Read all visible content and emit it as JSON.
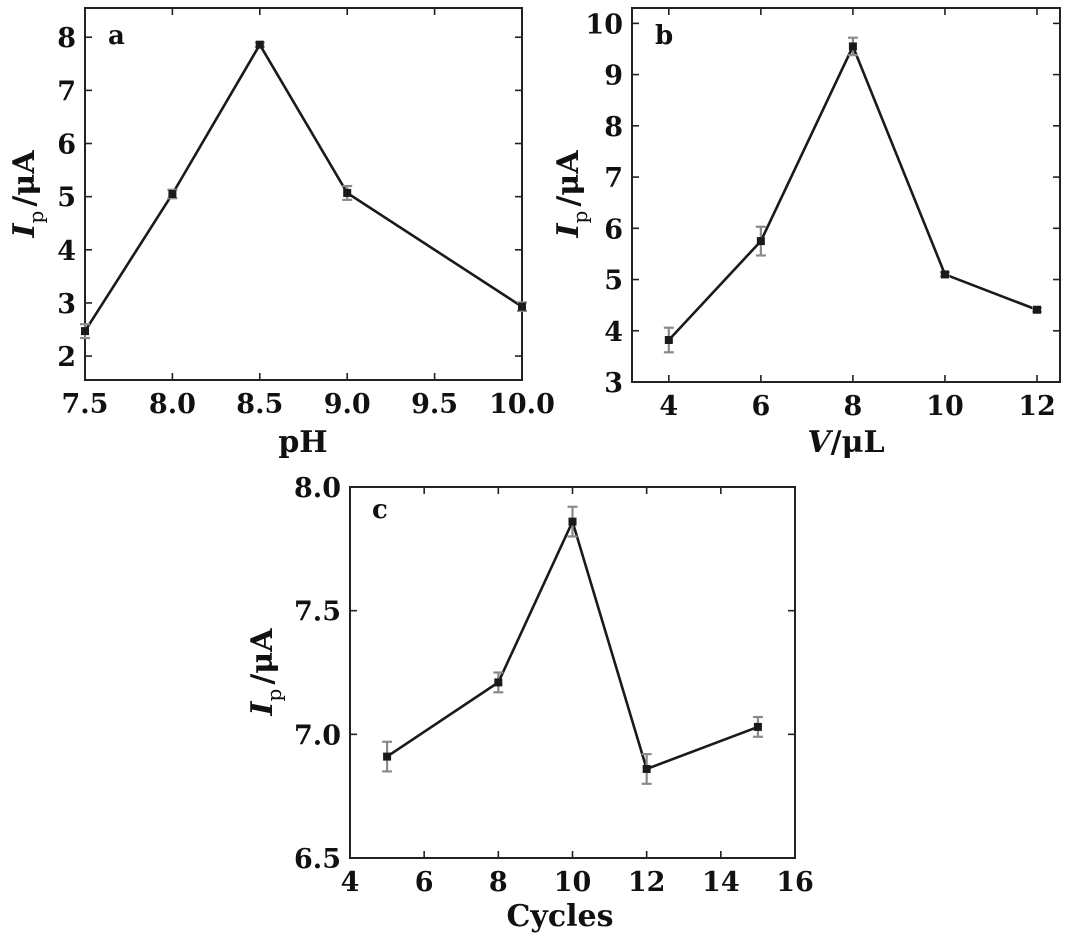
{
  "chart_data": [
    {
      "type": "line",
      "panel": "a",
      "xlabel": "pH",
      "ylabel": {
        "symbol": "I",
        "subscript": "p",
        "unit": "/μA"
      },
      "xlim": [
        7.5,
        10.0
      ],
      "ylim": [
        1.55,
        8.55
      ],
      "xticks": [
        "7.5",
        "8.0",
        "8.5",
        "9.0",
        "9.5",
        "10.0"
      ],
      "yticks": [
        "2",
        "3",
        "4",
        "5",
        "6",
        "7",
        "8"
      ],
      "x": [
        7.5,
        8.0,
        8.5,
        9.0,
        10.0
      ],
      "y": [
        2.47,
        5.05,
        7.86,
        5.07,
        2.93
      ],
      "err": [
        0.13,
        0.08,
        0.04,
        0.13,
        0.08
      ],
      "grid": false
    },
    {
      "type": "line",
      "panel": "b",
      "xlabel": {
        "symbol": "V",
        "unit": "/μL"
      },
      "ylabel": {
        "symbol": "I",
        "subscript": "p",
        "unit": "/μA"
      },
      "xlim": [
        3.2,
        12.5
      ],
      "ylim": [
        3.0,
        10.3
      ],
      "xticks": [
        "4",
        "6",
        "8",
        "10",
        "12"
      ],
      "yticks": [
        "3",
        "4",
        "5",
        "6",
        "7",
        "8",
        "9",
        "10"
      ],
      "x": [
        4,
        6,
        8,
        10,
        12
      ],
      "y": [
        3.82,
        5.75,
        9.55,
        5.1,
        4.41
      ],
      "err": [
        0.24,
        0.28,
        0.17,
        0.04,
        0.04
      ],
      "grid": false
    },
    {
      "type": "line",
      "panel": "c",
      "xlabel": "Cycles",
      "ylabel": {
        "symbol": "I",
        "subscript": "p",
        "unit": "/μA"
      },
      "xlim": [
        4,
        16
      ],
      "ylim": [
        6.5,
        8.0
      ],
      "xticks": [
        "4",
        "6",
        "8",
        "10",
        "12",
        "14",
        "16"
      ],
      "yticks": [
        "6.5",
        "7.0",
        "7.5",
        "8.0"
      ],
      "x": [
        5,
        8,
        10,
        12,
        15
      ],
      "y": [
        6.91,
        7.21,
        7.86,
        6.86,
        7.03
      ],
      "err": [
        0.06,
        0.04,
        0.06,
        0.06,
        0.04
      ],
      "grid": false
    }
  ]
}
